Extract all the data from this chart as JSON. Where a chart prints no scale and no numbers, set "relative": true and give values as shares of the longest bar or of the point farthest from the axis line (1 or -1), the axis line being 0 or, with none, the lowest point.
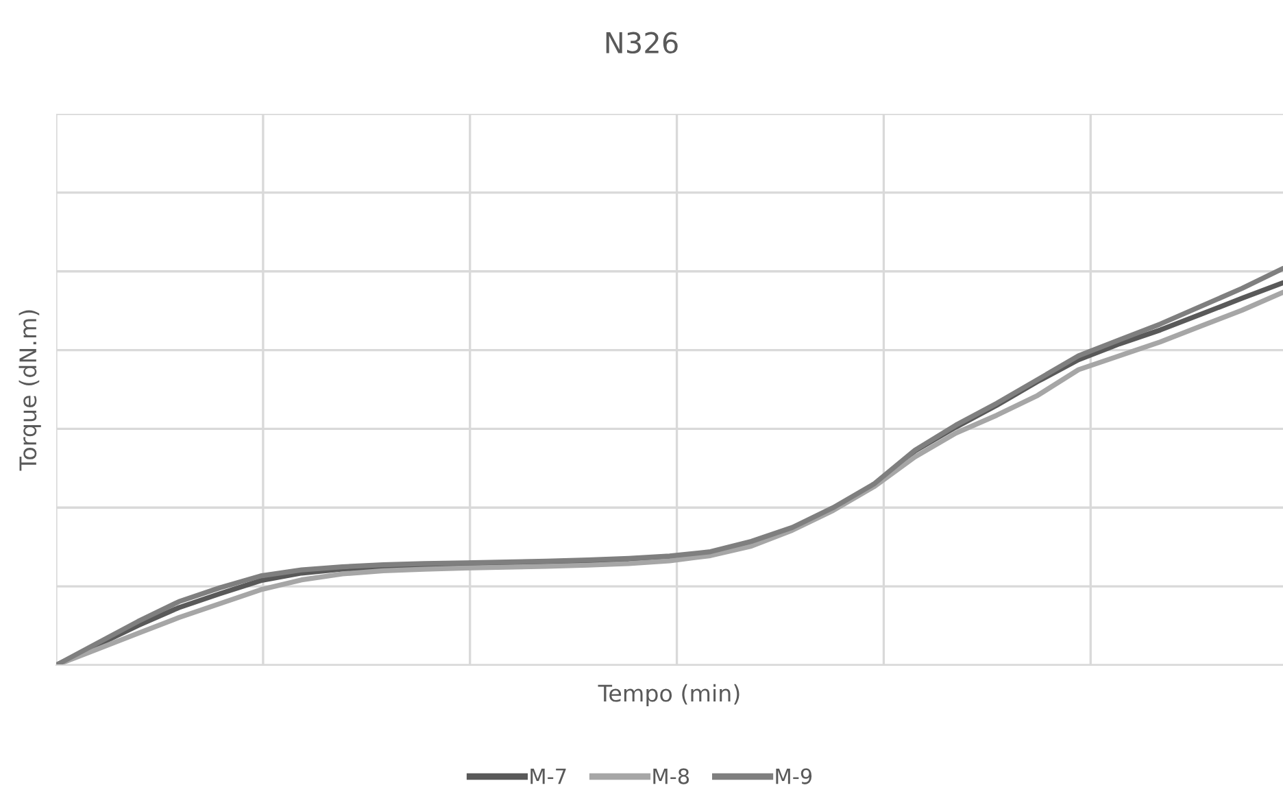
{
  "chart_data": {
    "type": "line",
    "title": "N326",
    "xlabel": "Tempo (min)",
    "ylabel": "Torque (dN.m)",
    "relative": true,
    "grid": true,
    "legend": "bottom",
    "marker": "none",
    "line_style": "solid",
    "categories": [
      null,
      null,
      null,
      null,
      null,
      null,
      null,
      null,
      null,
      null,
      null,
      null,
      null,
      null,
      null,
      null,
      null,
      null,
      null,
      null,
      null,
      null,
      null,
      null,
      null,
      null,
      null,
      null,
      null,
      null,
      null
    ],
    "series": [
      {
        "name": "M-7",
        "color": "#595959",
        "values": [
          0,
          0.05,
          0.1,
          0.145,
          0.18,
          0.213,
          0.232,
          0.242,
          0.248,
          0.252,
          0.255,
          0.257,
          0.259,
          0.262,
          0.266,
          0.272,
          0.284,
          0.31,
          0.345,
          0.395,
          0.455,
          0.54,
          0.6,
          0.655,
          0.715,
          0.77,
          0.81,
          0.845,
          0.885,
          0.925,
          0.964
        ]
      },
      {
        "name": "M-8",
        "color": "#a6a6a6",
        "values": [
          0,
          0.04,
          0.08,
          0.12,
          0.155,
          0.19,
          0.215,
          0.23,
          0.238,
          0.242,
          0.245,
          0.247,
          0.249,
          0.252,
          0.256,
          0.263,
          0.276,
          0.3,
          0.34,
          0.39,
          0.45,
          0.525,
          0.585,
          0.63,
          0.68,
          0.745,
          0.78,
          0.815,
          0.855,
          0.895,
          0.94
        ]
      },
      {
        "name": "M-9",
        "color": "#7f7f7f",
        "values": [
          0,
          0.055,
          0.11,
          0.16,
          0.195,
          0.225,
          0.24,
          0.248,
          0.253,
          0.256,
          0.258,
          0.26,
          0.262,
          0.265,
          0.269,
          0.275,
          0.286,
          0.312,
          0.347,
          0.397,
          0.457,
          0.542,
          0.605,
          0.66,
          0.72,
          0.78,
          0.82,
          0.86,
          0.905,
          0.95,
          1.0
        ]
      }
    ]
  }
}
